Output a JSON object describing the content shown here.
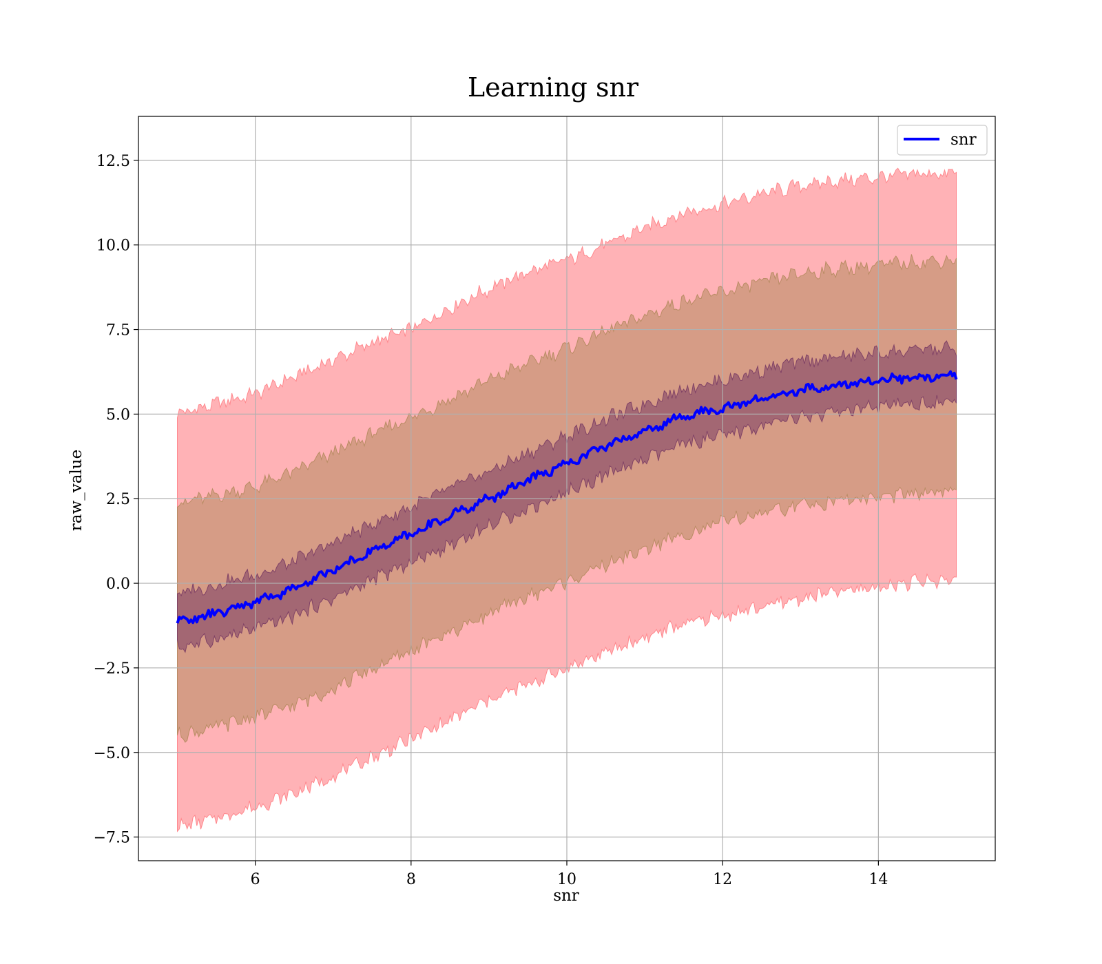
{
  "chart_data": {
    "type": "line",
    "title": "Learning snr",
    "xlabel": "snr",
    "ylabel": "raw_value",
    "xlim": [
      4.5,
      15.5
    ],
    "ylim": [
      -8.2,
      13.8
    ],
    "xticks": [
      6,
      8,
      10,
      12,
      14
    ],
    "yticks": [
      -7.5,
      -5.0,
      -2.5,
      0.0,
      2.5,
      5.0,
      7.5,
      10.0,
      12.5
    ],
    "grid": true,
    "legend": {
      "position": "top-right",
      "entries": [
        "snr"
      ]
    },
    "series": [
      {
        "name": "snr",
        "color": "#0000ff",
        "x": [
          5.0,
          5.5,
          6.0,
          6.5,
          7.0,
          7.5,
          8.0,
          8.5,
          9.0,
          9.5,
          10.0,
          10.5,
          11.0,
          11.5,
          12.0,
          12.5,
          13.0,
          13.5,
          14.0,
          14.5,
          15.0
        ],
        "values": [
          -1.15,
          -0.9,
          -0.55,
          -0.15,
          0.4,
          0.95,
          1.45,
          2.0,
          2.5,
          3.05,
          3.55,
          4.05,
          4.5,
          4.95,
          5.15,
          5.45,
          5.7,
          5.85,
          6.0,
          6.1,
          6.15
        ]
      }
    ],
    "bands": [
      {
        "color": "#ff7f85",
        "opacity": 0.6,
        "x": [
          5.0,
          5.5,
          6.0,
          6.5,
          7.0,
          7.5,
          8.0,
          8.5,
          9.0,
          9.5,
          10.0,
          10.5,
          11.0,
          11.5,
          12.0,
          12.5,
          13.0,
          13.5,
          14.0,
          14.5,
          15.0
        ],
        "lower": [
          -7.2,
          -6.95,
          -6.6,
          -6.2,
          -5.7,
          -5.15,
          -4.6,
          -4.05,
          -3.45,
          -3.0,
          -2.5,
          -2.05,
          -1.6,
          -1.2,
          -0.95,
          -0.7,
          -0.45,
          -0.25,
          -0.1,
          0.05,
          0.1
        ],
        "upper": [
          5.0,
          5.3,
          5.6,
          6.1,
          6.6,
          7.1,
          7.5,
          8.15,
          8.7,
          9.2,
          9.55,
          10.0,
          10.5,
          10.95,
          11.2,
          11.5,
          11.75,
          11.9,
          12.0,
          12.1,
          12.1
        ]
      },
      {
        "color": "#b48a5e",
        "opacity": 0.55,
        "x": [
          5.0,
          5.5,
          6.0,
          6.5,
          7.0,
          7.5,
          8.0,
          8.5,
          9.0,
          9.5,
          10.0,
          10.5,
          11.0,
          11.5,
          12.0,
          12.5,
          13.0,
          13.5,
          14.0,
          14.5,
          15.0
        ],
        "lower": [
          -4.5,
          -4.25,
          -3.95,
          -3.6,
          -3.1,
          -2.55,
          -2.0,
          -1.45,
          -0.9,
          -0.4,
          0.05,
          0.55,
          1.0,
          1.45,
          1.8,
          2.05,
          2.3,
          2.45,
          2.55,
          2.65,
          2.7
        ],
        "upper": [
          2.35,
          2.6,
          2.85,
          3.3,
          3.85,
          4.4,
          4.9,
          5.45,
          6.0,
          6.5,
          6.95,
          7.45,
          7.9,
          8.35,
          8.6,
          8.9,
          9.15,
          9.3,
          9.4,
          9.5,
          9.55
        ]
      },
      {
        "color": "#7a3c64",
        "opacity": 0.55,
        "x": [
          5.0,
          5.5,
          6.0,
          6.5,
          7.0,
          7.5,
          8.0,
          8.5,
          9.0,
          9.5,
          10.0,
          10.5,
          11.0,
          11.5,
          12.0,
          12.5,
          13.0,
          13.5,
          14.0,
          14.5,
          15.0
        ],
        "lower": [
          -1.9,
          -1.65,
          -1.35,
          -0.95,
          -0.45,
          0.1,
          0.6,
          1.15,
          1.7,
          2.2,
          2.7,
          3.2,
          3.65,
          4.1,
          4.35,
          4.65,
          4.9,
          5.05,
          5.2,
          5.3,
          5.35
        ],
        "upper": [
          -0.3,
          -0.05,
          0.25,
          0.65,
          1.2,
          1.75,
          2.25,
          2.8,
          3.3,
          3.85,
          4.35,
          4.85,
          5.3,
          5.75,
          6.0,
          6.3,
          6.55,
          6.7,
          6.8,
          6.9,
          6.95
        ]
      }
    ]
  }
}
